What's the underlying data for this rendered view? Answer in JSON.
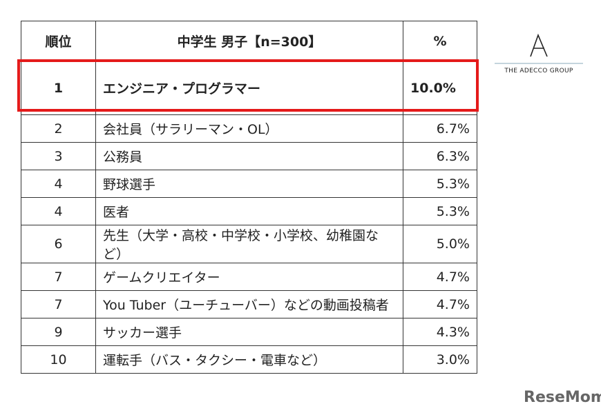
{
  "table": {
    "header": [
      "順位",
      "中学生 男子【n=300】",
      "%"
    ],
    "rows": [
      [
        1,
        "エンジニア・プログラマー",
        "10.0%"
      ],
      [
        2,
        "会社員（サラリーマン・OL）",
        "6.7%"
      ],
      [
        3,
        "公務員",
        "6.3%"
      ],
      [
        4,
        "野球選手",
        "5.3%"
      ],
      [
        4,
        "医者",
        "5.3%"
      ],
      [
        6,
        "先生（大学・高校・中学校・小学校、幼稚園など）",
        "5.0%"
      ],
      [
        7,
        "ゲームクリエイター",
        "4.7%"
      ],
      [
        7,
        "You Tuber（ユーチューバー）などの動画投稿者",
        "4.7%"
      ],
      [
        9,
        "サッカー選手",
        "4.3%"
      ],
      [
        10,
        "運転手（バス・タクシー・電車など）",
        "3.0%"
      ]
    ]
  },
  "logo": {
    "text": "THE ADECCO GROUP"
  },
  "watermark": {
    "text": "ReseMom"
  }
}
